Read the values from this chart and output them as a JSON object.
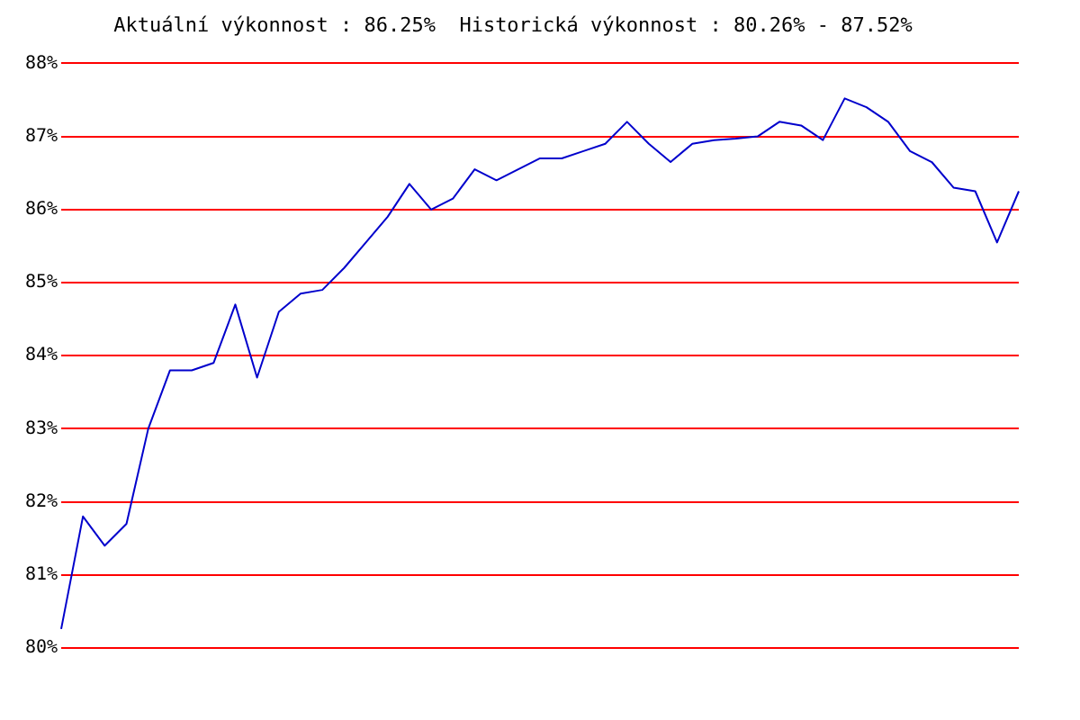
{
  "chart_data": {
    "type": "line",
    "title": "Aktuální výkonnost : 86.25%  Historická výkonnost : 80.26% - 87.52%",
    "categories": [
      null,
      null,
      null,
      null,
      null,
      null,
      null,
      null,
      null,
      null,
      null,
      null,
      null,
      null,
      null,
      null,
      null,
      null,
      null,
      null,
      null,
      null,
      null,
      null,
      null,
      null,
      null,
      null,
      null,
      null,
      null,
      null,
      null,
      null,
      null,
      null,
      null,
      null,
      null,
      null,
      null,
      null,
      null,
      null,
      null
    ],
    "series": [
      {
        "color": "#0000cc",
        "values": [
          80.26,
          81.8,
          81.4,
          81.7,
          83.0,
          83.8,
          83.8,
          83.9,
          84.7,
          83.7,
          84.6,
          84.85,
          84.9,
          85.2,
          85.55,
          85.9,
          86.35,
          86.0,
          86.15,
          86.55,
          86.4,
          86.55,
          86.7,
          86.7,
          86.8,
          86.9,
          87.2,
          86.9,
          86.65,
          86.9,
          86.95,
          86.97,
          87.0,
          87.2,
          87.15,
          86.95,
          87.52,
          87.4,
          87.2,
          86.8,
          86.65,
          86.3,
          86.25,
          85.55,
          86.25
        ]
      }
    ],
    "ylim": [
      80,
      88
    ],
    "yticks": [
      {
        "value": 80,
        "label": "80%"
      },
      {
        "value": 81,
        "label": "81%"
      },
      {
        "value": 82,
        "label": "82%"
      },
      {
        "value": 83,
        "label": "83%"
      },
      {
        "value": 84,
        "label": "84%"
      },
      {
        "value": 85,
        "label": "85%"
      },
      {
        "value": 86,
        "label": "86%"
      },
      {
        "value": 87,
        "label": "87%"
      },
      {
        "value": 88,
        "label": "88%"
      }
    ],
    "grid": "y",
    "tick_labels": "y",
    "marker": "none",
    "line_style": "solid"
  }
}
